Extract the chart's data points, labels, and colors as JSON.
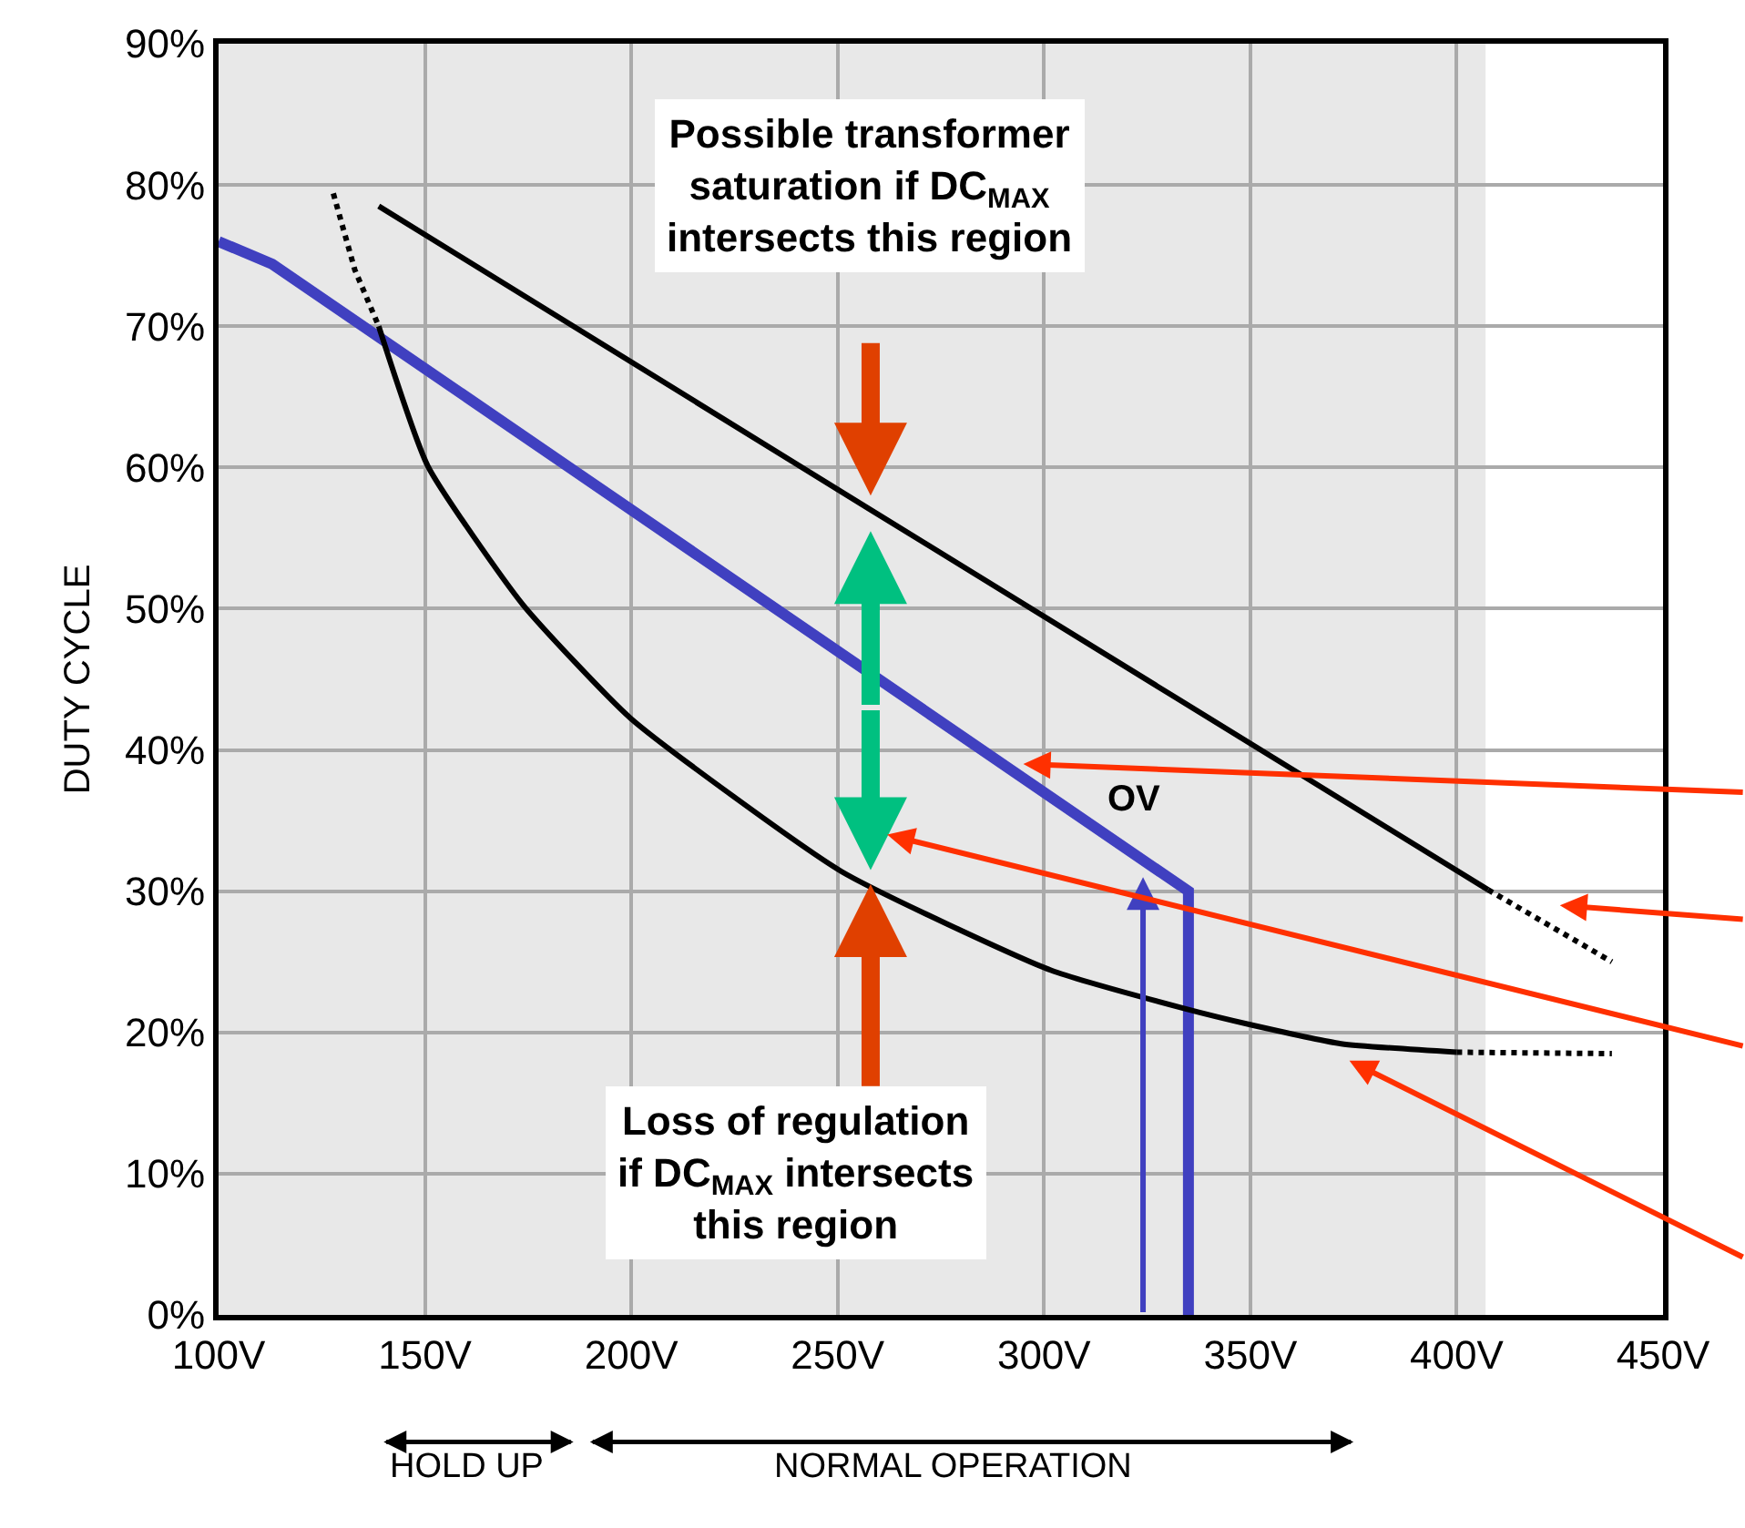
{
  "chart_data": {
    "type": "line",
    "ylabel": "DUTY CYCLE",
    "xlim": [
      100,
      450
    ],
    "ylim": [
      0,
      90
    ],
    "xticks": [
      {
        "value": 100,
        "label": "100V"
      },
      {
        "value": 150,
        "label": "150V"
      },
      {
        "value": 200,
        "label": "200V"
      },
      {
        "value": 250,
        "label": "250V"
      },
      {
        "value": 300,
        "label": "300V"
      },
      {
        "value": 350,
        "label": "350V"
      },
      {
        "value": 400,
        "label": "400V"
      },
      {
        "value": 450,
        "label": "450V"
      }
    ],
    "yticks": [
      {
        "value": 0,
        "label": "0%"
      },
      {
        "value": 10,
        "label": "10%"
      },
      {
        "value": 20,
        "label": "20%"
      },
      {
        "value": 30,
        "label": "30%"
      },
      {
        "value": 40,
        "label": "40%"
      },
      {
        "value": 50,
        "label": "50%"
      },
      {
        "value": 60,
        "label": "60%"
      },
      {
        "value": 70,
        "label": "70%"
      },
      {
        "value": 80,
        "label": "80%"
      },
      {
        "value": 90,
        "label": "90%"
      }
    ],
    "grid": true,
    "bands": [
      {
        "axis": "x",
        "from": 100,
        "to": 407,
        "label": null,
        "color": "#d8d8d8"
      }
    ],
    "series": [
      {
        "color": "#4040c0",
        "line_style": "solid",
        "x": [
          100,
          113,
          335,
          335
        ],
        "values": [
          76,
          74.4,
          30,
          0
        ]
      },
      {
        "color": "#000000",
        "line_style": "solid",
        "x": [
          138.8,
          258,
          407.6
        ],
        "values": [
          78.5,
          57,
          30.1
        ]
      },
      {
        "color": "#000000",
        "line_style": "dotted",
        "x": [
          407.6,
          437.6
        ],
        "values": [
          30.1,
          25
        ]
      },
      {
        "color": "#000000",
        "line_style": "dotted",
        "x": [
          127.8,
          133,
          138.8
        ],
        "values": [
          79.4,
          74,
          70
        ]
      },
      {
        "color": "#000000",
        "line_style": "solid",
        "x": [
          138.8,
          150.7,
          173.7,
          200,
          250.9,
          301.7,
          333.9,
          350.7,
          372,
          400
        ],
        "values": [
          70,
          60.1,
          50.3,
          42.2,
          31.4,
          24.4,
          21.7,
          20.5,
          19.2,
          18.6
        ]
      },
      {
        "color": "#000000",
        "line_style": "dotted",
        "x": [
          400,
          437.6
        ],
        "values": [
          18.6,
          18.5
        ]
      }
    ],
    "annotations": [
      "Possible transformer saturation if DC$_{MAX}$ intersects this region",
      "Loss of regulation if DC$_{MAX}$ intersects this region",
      "OV",
      "HOLD UP",
      "NORMAL OPERATION"
    ]
  }
}
